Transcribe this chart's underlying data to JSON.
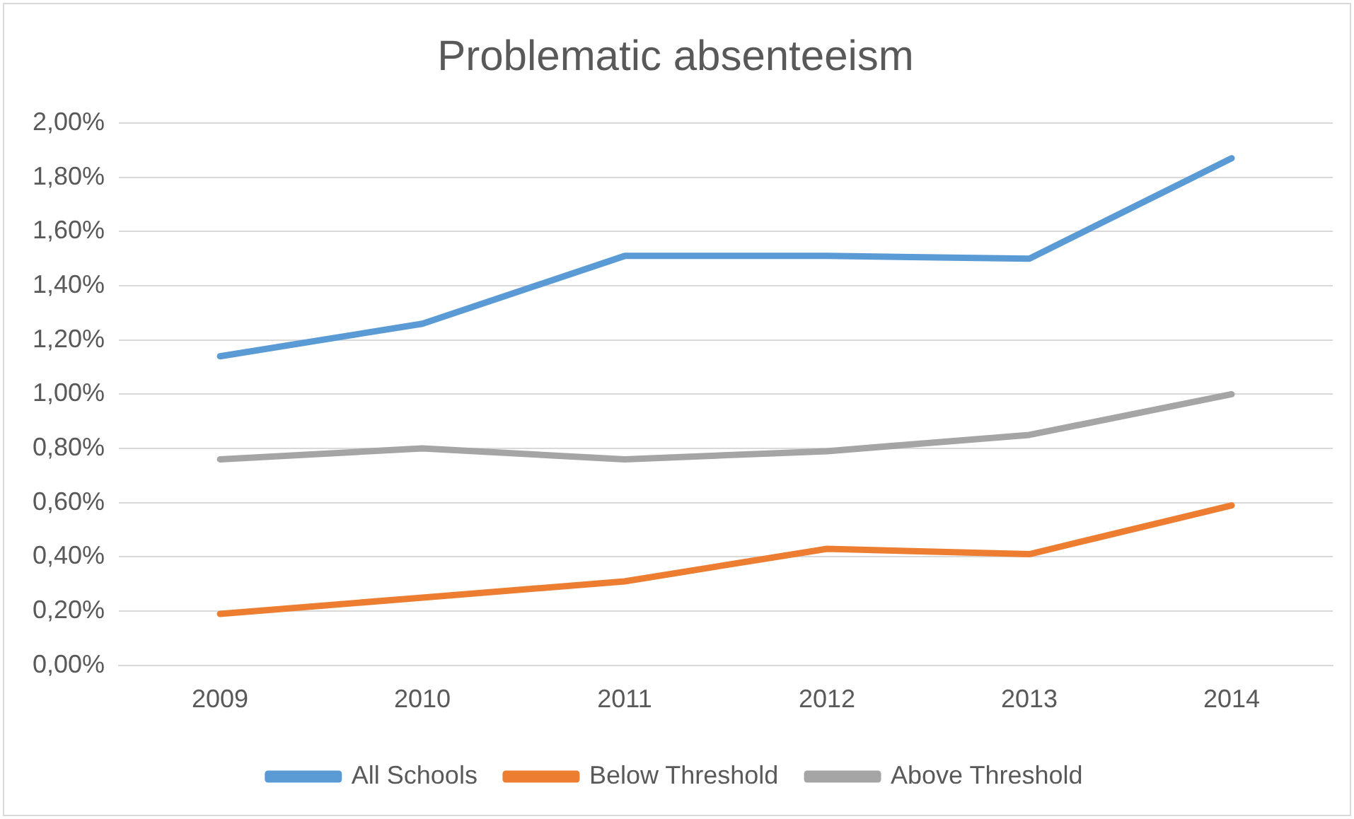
{
  "chart_data": {
    "type": "line",
    "title": "Problematic absenteeism",
    "categories": [
      "2009",
      "2010",
      "2011",
      "2012",
      "2013",
      "2014"
    ],
    "series": [
      {
        "name": "All Schools",
        "color": "#5b9bd5",
        "values": [
          1.14,
          1.26,
          1.51,
          1.51,
          1.5,
          1.87
        ]
      },
      {
        "name": "Below Threshold",
        "color": "#ed7d31",
        "values": [
          0.19,
          0.25,
          0.31,
          0.43,
          0.41,
          0.59
        ]
      },
      {
        "name": "Above Threshold",
        "color": "#a5a5a5",
        "values": [
          0.76,
          0.8,
          0.76,
          0.79,
          0.85,
          1.0
        ]
      }
    ],
    "ylim": [
      0,
      2
    ],
    "yticks": [
      {
        "value": 0,
        "label": "0,00%"
      },
      {
        "value": 0.2,
        "label": "0,20%"
      },
      {
        "value": 0.4,
        "label": "0,40%"
      },
      {
        "value": 0.6,
        "label": "0,60%"
      },
      {
        "value": 0.8,
        "label": "0,80%"
      },
      {
        "value": 1,
        "label": "1,00%"
      },
      {
        "value": 1.2,
        "label": "1,20%"
      },
      {
        "value": 1.4,
        "label": "1,40%"
      },
      {
        "value": 1.6,
        "label": "1,60%"
      },
      {
        "value": 1.8,
        "label": "1,80%"
      },
      {
        "value": 2,
        "label": "2,00%"
      }
    ],
    "grid": "y",
    "legend": "bottom",
    "marker": "none",
    "line_style": "solid"
  }
}
